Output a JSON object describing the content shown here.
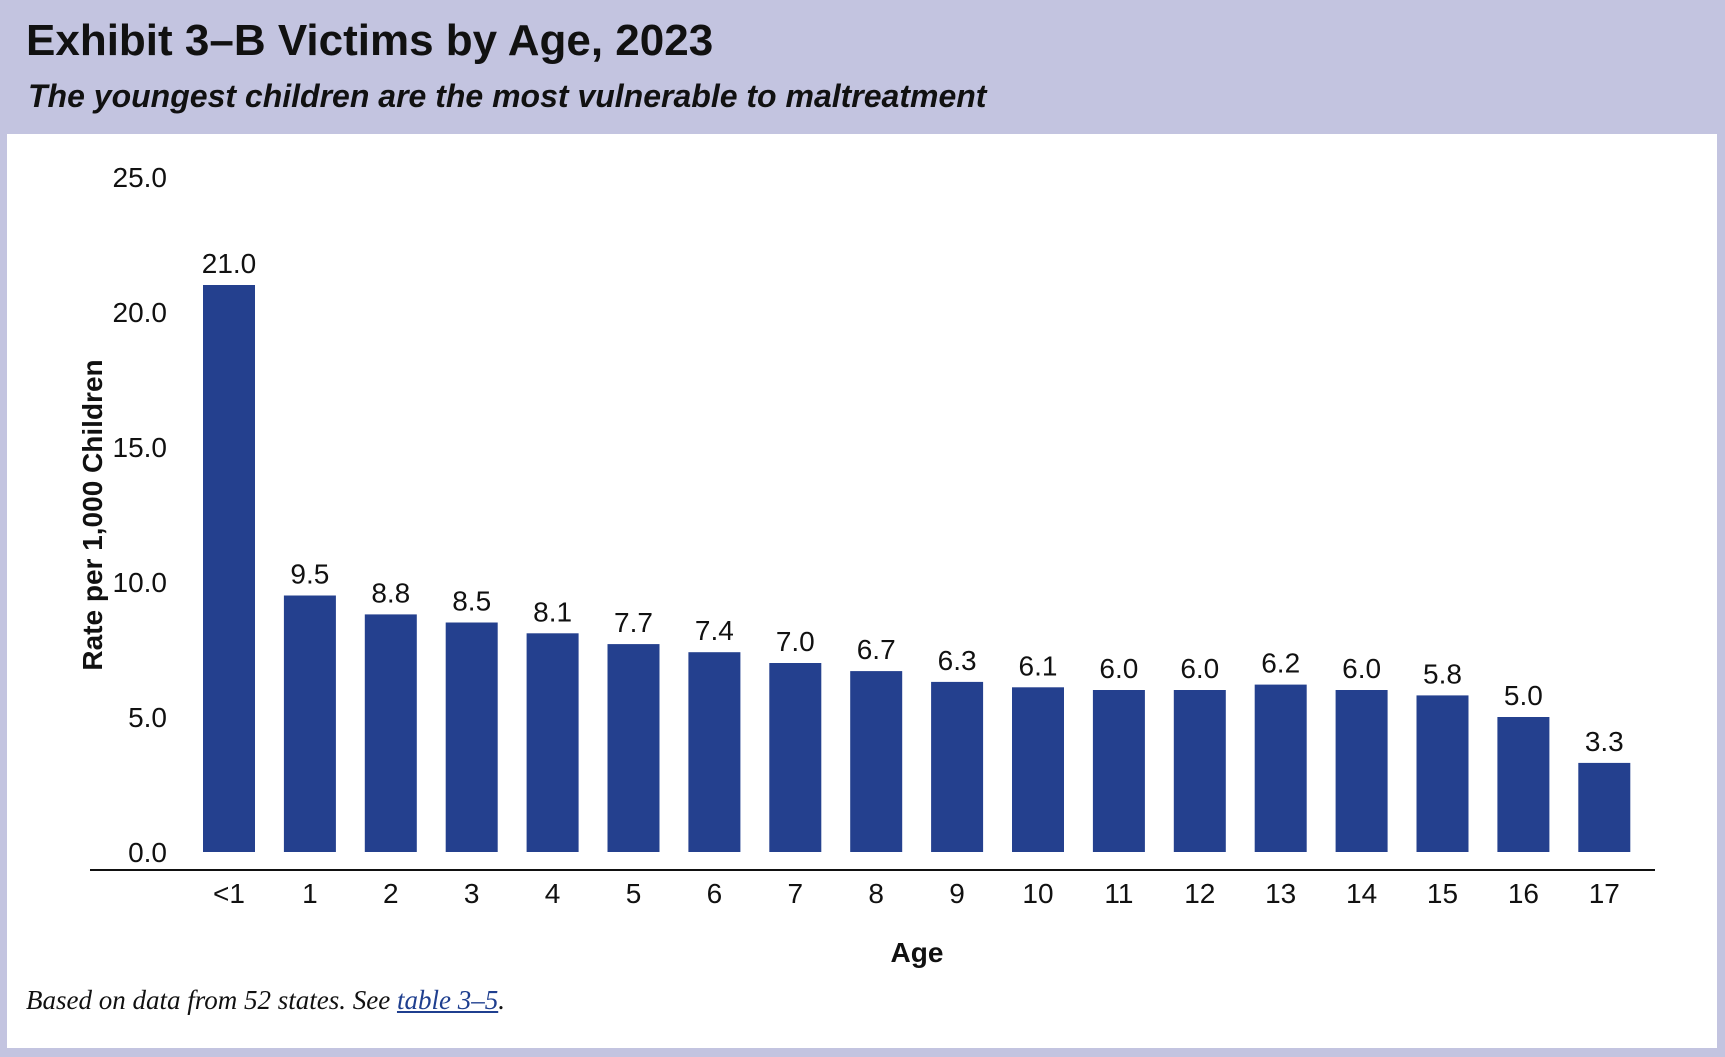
{
  "header": {
    "title": "Exhibit 3–B Victims by Age, 2023",
    "subtitle": "The youngest children are the most vulnerable to maltreatment"
  },
  "footnote": {
    "text": "Based on data from 52 states. See ",
    "link_text": "table 3–5",
    "end": "."
  },
  "colors": {
    "bar": "#24408e",
    "header_bg": "#c3c4e0",
    "panel_bg": "#ffffff"
  },
  "chart_data": {
    "type": "bar",
    "categories": [
      "<1",
      "1",
      "2",
      "3",
      "4",
      "5",
      "6",
      "7",
      "8",
      "9",
      "10",
      "11",
      "12",
      "13",
      "14",
      "15",
      "16",
      "17"
    ],
    "values": [
      21.0,
      9.5,
      8.8,
      8.5,
      8.1,
      7.7,
      7.4,
      7.0,
      6.7,
      6.3,
      6.1,
      6.0,
      6.0,
      6.2,
      6.0,
      5.8,
      5.0,
      3.3
    ],
    "value_labels": [
      "21.0",
      "9.5",
      "8.8",
      "8.5",
      "8.1",
      "7.7",
      "7.4",
      "7.0",
      "6.7",
      "6.3",
      "6.1",
      "6.0",
      "6.0",
      "6.2",
      "6.0",
      "5.8",
      "5.0",
      "3.3"
    ],
    "xlabel": "Age",
    "ylabel": "Rate per 1,000 Children",
    "ylim": [
      0,
      25
    ],
    "yticks": [
      "0.0",
      "5.0",
      "10.0",
      "15.0",
      "20.0",
      "25.0"
    ],
    "grid": false,
    "legend": "none"
  }
}
